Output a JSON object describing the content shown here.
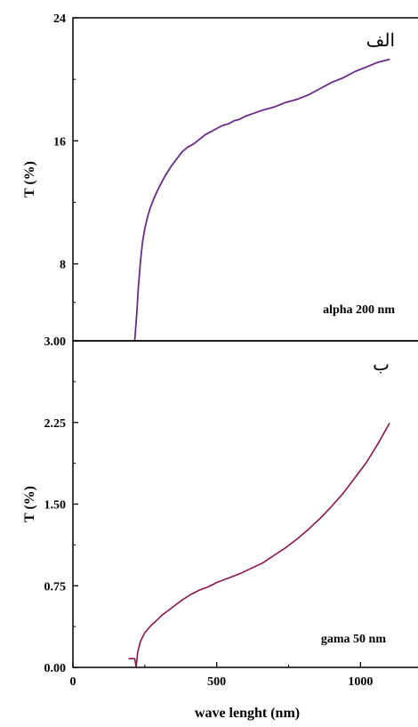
{
  "chart_data": [
    {
      "type": "line",
      "annotation": "alpha 200 nm",
      "panel_label": "الف",
      "ylabel": "T (%)",
      "xlabel": "",
      "xlim": [
        0,
        1200
      ],
      "ylim": [
        3,
        24
      ],
      "yticks": [
        3,
        8,
        16,
        24
      ],
      "ytick_labels": [
        "3.00",
        "8",
        "16",
        "24"
      ],
      "line_color": "#6a2a8c",
      "series": [
        {
          "x": [
            215,
            222,
            228,
            235,
            242,
            250,
            260,
            270,
            285,
            300,
            320,
            340,
            360,
            380,
            400,
            420,
            440,
            460,
            480,
            500,
            520,
            540,
            560,
            580,
            600,
            630,
            660,
            700,
            740,
            780,
            820,
            860,
            900,
            940,
            980,
            1020,
            1060,
            1100
          ],
          "y": [
            3.0,
            4.8,
            6.6,
            8.2,
            9.4,
            10.3,
            11.1,
            11.7,
            12.4,
            13.0,
            13.7,
            14.3,
            14.8,
            15.3,
            15.6,
            15.8,
            16.1,
            16.4,
            16.6,
            16.8,
            17.0,
            17.1,
            17.3,
            17.4,
            17.6,
            17.8,
            18.0,
            18.2,
            18.5,
            18.7,
            19.0,
            19.4,
            19.8,
            20.1,
            20.5,
            20.8,
            21.1,
            21.3
          ]
        }
      ]
    },
    {
      "type": "line",
      "annotation": "gama 50 nm",
      "panel_label": "ب",
      "ylabel": "T (%)",
      "xlabel": "wave lenght (nm)",
      "xlim": [
        0,
        1200
      ],
      "ylim": [
        0,
        3.0
      ],
      "yticks": [
        0,
        0.75,
        1.5,
        2.25,
        3.0
      ],
      "ytick_labels": [
        "0.00",
        "0.75",
        "1.50",
        "2.25",
        ""
      ],
      "xticks": [
        0,
        500,
        1000
      ],
      "xtick_labels": [
        "0",
        "500",
        "1000"
      ],
      "line_color": "#8b1450",
      "series": [
        {
          "x": [
            195,
            215,
            220,
            225,
            235,
            250,
            270,
            290,
            310,
            330,
            350,
            380,
            410,
            440,
            470,
            500,
            540,
            580,
            620,
            660,
            700,
            740,
            780,
            820,
            860,
            900,
            940,
            980,
            1020,
            1060,
            1100
          ],
          "y": [
            0.08,
            0.08,
            0.0,
            0.14,
            0.24,
            0.32,
            0.38,
            0.43,
            0.48,
            0.52,
            0.56,
            0.62,
            0.67,
            0.71,
            0.74,
            0.78,
            0.82,
            0.86,
            0.91,
            0.96,
            1.03,
            1.1,
            1.18,
            1.27,
            1.37,
            1.48,
            1.6,
            1.74,
            1.88,
            2.05,
            2.24
          ]
        }
      ]
    }
  ]
}
